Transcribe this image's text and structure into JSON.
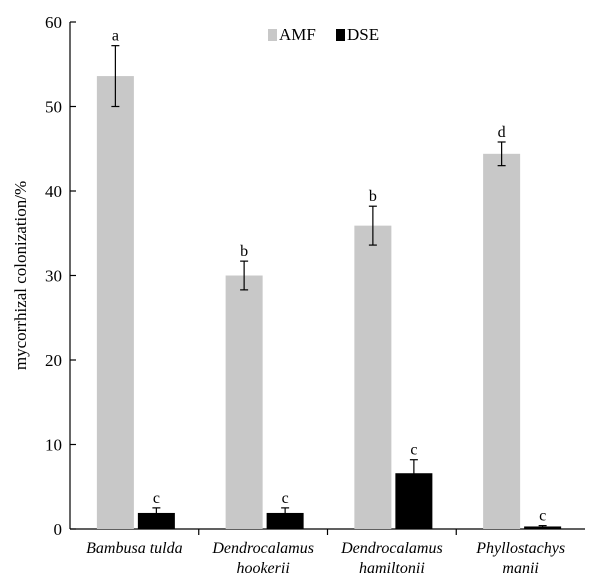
{
  "chart_data": {
    "type": "bar",
    "ylabel": "mycorrhizal colonization/%",
    "ylim": [
      0,
      60
    ],
    "yticks": [
      0,
      10,
      20,
      30,
      40,
      50,
      60
    ],
    "grid": false,
    "legend_position": "top-center",
    "categories": [
      {
        "line1": "Bambusa tulda",
        "line2": ""
      },
      {
        "line1": "Dendrocalamus",
        "line2": "hookerii"
      },
      {
        "line1": "Dendrocalamus",
        "line2": "hamiltonii"
      },
      {
        "line1": "Phyllostachys",
        "line2": "manii"
      }
    ],
    "series": [
      {
        "name": "AMF",
        "color": "#c8c8c8",
        "values": [
          53.6,
          30.0,
          35.9,
          44.4
        ],
        "errors": [
          3.6,
          1.7,
          2.3,
          1.4
        ],
        "labels": [
          "a",
          "b",
          "b",
          "d"
        ]
      },
      {
        "name": "DSE",
        "color": "#000000",
        "values": [
          1.9,
          1.9,
          6.6,
          0.3
        ],
        "errors": [
          0.6,
          0.6,
          1.6,
          0.1
        ],
        "labels": [
          "c",
          "c",
          "c",
          "c"
        ]
      }
    ]
  }
}
